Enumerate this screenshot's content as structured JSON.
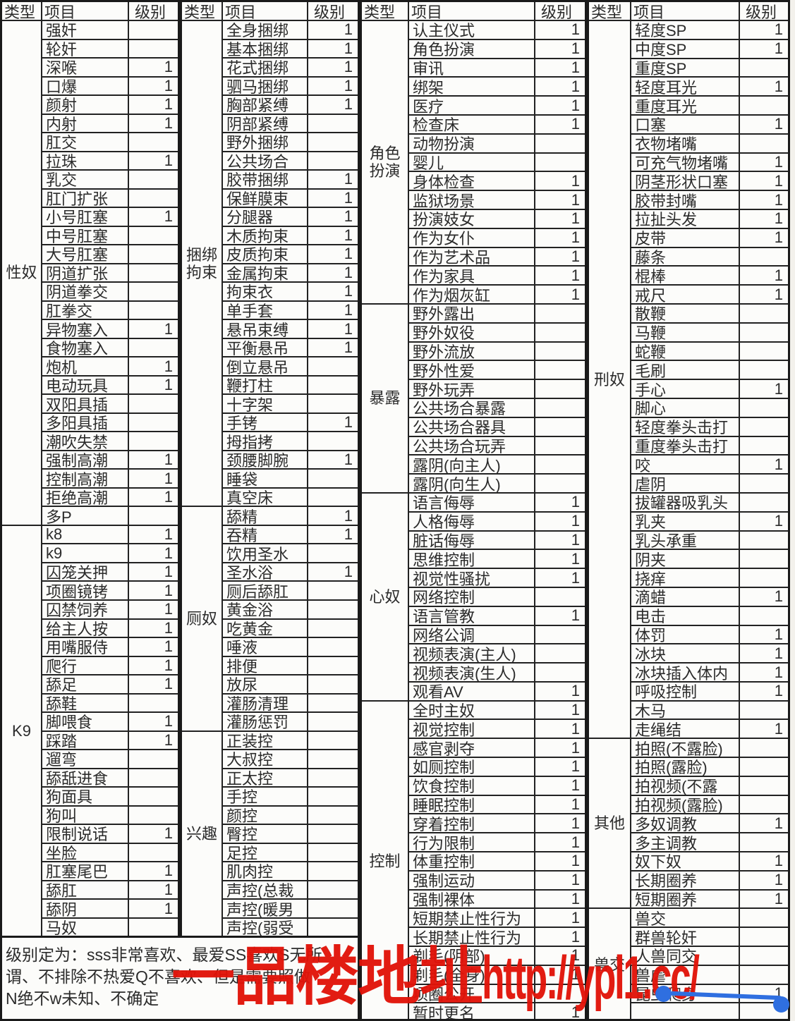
{
  "columns": {
    "type": "类型",
    "item": "项目",
    "level": "级别"
  },
  "groups": [
    {
      "sections": [
        {
          "label": "性奴",
          "items": [
            {
              "name": "强奸",
              "level": ""
            },
            {
              "name": "轮奸",
              "level": ""
            },
            {
              "name": "深喉",
              "level": "1"
            },
            {
              "name": "口爆",
              "level": "1"
            },
            {
              "name": "颜射",
              "level": "1"
            },
            {
              "name": "内射",
              "level": "1"
            },
            {
              "name": "肛交",
              "level": ""
            },
            {
              "name": "拉珠",
              "level": "1"
            },
            {
              "name": "乳交",
              "level": ""
            },
            {
              "name": "肛门扩张",
              "level": ""
            },
            {
              "name": "小号肛塞",
              "level": "1"
            },
            {
              "name": "中号肛塞",
              "level": ""
            },
            {
              "name": "大号肛塞",
              "level": ""
            },
            {
              "name": "阴道扩张",
              "level": ""
            },
            {
              "name": "阴道拳交",
              "level": ""
            },
            {
              "name": "肛拳交",
              "level": ""
            },
            {
              "name": "异物塞入",
              "level": "1"
            },
            {
              "name": "食物塞入",
              "level": ""
            },
            {
              "name": "炮机",
              "level": "1"
            },
            {
              "name": "电动玩具",
              "level": "1"
            },
            {
              "name": "双阳具插",
              "level": ""
            },
            {
              "name": "多阳具插",
              "level": ""
            },
            {
              "name": "潮吹失禁",
              "level": ""
            },
            {
              "name": "强制高潮",
              "level": "1"
            },
            {
              "name": "控制高潮",
              "level": "1"
            },
            {
              "name": "拒绝高潮",
              "level": "1"
            },
            {
              "name": "多P",
              "level": ""
            }
          ]
        },
        {
          "label": "K9",
          "items": [
            {
              "name": "k8",
              "level": "1"
            },
            {
              "name": "k9",
              "level": "1"
            },
            {
              "name": "囚笼关押",
              "level": "1"
            },
            {
              "name": "项圈镜铐",
              "level": "1"
            },
            {
              "name": "囚禁饲养",
              "level": "1"
            },
            {
              "name": "给主人按",
              "level": "1"
            },
            {
              "name": "用嘴服侍",
              "level": "1"
            },
            {
              "name": "爬行",
              "level": "1"
            },
            {
              "name": "舔足",
              "level": "1"
            },
            {
              "name": "舔鞋",
              "level": ""
            },
            {
              "name": "脚喂食",
              "level": "1"
            },
            {
              "name": "踩踏",
              "level": "1"
            },
            {
              "name": "遛弯",
              "level": ""
            },
            {
              "name": "舔舐进食",
              "level": ""
            },
            {
              "name": "狗面具",
              "level": ""
            },
            {
              "name": "狗叫",
              "level": ""
            },
            {
              "name": "限制说话",
              "level": "1"
            },
            {
              "name": "坐脸",
              "level": ""
            },
            {
              "name": "肛塞尾巴",
              "level": "1"
            },
            {
              "name": "舔肛",
              "level": "1"
            },
            {
              "name": "舔阴",
              "level": "1"
            },
            {
              "name": "马奴",
              "level": ""
            }
          ]
        }
      ]
    },
    {
      "sections": [
        {
          "label": "捆绑拘束",
          "items": [
            {
              "name": "全身捆绑",
              "level": "1"
            },
            {
              "name": "基本捆绑",
              "level": "1"
            },
            {
              "name": "花式捆绑",
              "level": "1"
            },
            {
              "name": "驷马捆绑",
              "level": "1"
            },
            {
              "name": "胸部紧缚",
              "level": "1"
            },
            {
              "name": "阴部紧缚",
              "level": ""
            },
            {
              "name": "野外捆绑",
              "level": ""
            },
            {
              "name": "公共场合",
              "level": ""
            },
            {
              "name": "胶带捆绑",
              "level": "1"
            },
            {
              "name": "保鲜膜束",
              "level": "1"
            },
            {
              "name": "分腿器",
              "level": "1"
            },
            {
              "name": "木质拘束",
              "level": "1"
            },
            {
              "name": "皮质拘束",
              "level": "1"
            },
            {
              "name": "金属拘束",
              "level": "1"
            },
            {
              "name": "拘束衣",
              "level": "1"
            },
            {
              "name": "单手套",
              "level": "1"
            },
            {
              "name": "悬吊束缚",
              "level": "1"
            },
            {
              "name": "平衡悬吊",
              "level": "1"
            },
            {
              "name": "倒立悬吊",
              "level": ""
            },
            {
              "name": "鞭打柱",
              "level": ""
            },
            {
              "name": "十字架",
              "level": ""
            },
            {
              "name": "手铐",
              "level": "1"
            },
            {
              "name": "拇指拷",
              "level": ""
            },
            {
              "name": "颈腰脚腕",
              "level": "1"
            },
            {
              "name": "睡袋",
              "level": ""
            },
            {
              "name": "真空床",
              "level": ""
            }
          ]
        },
        {
          "label": "厕奴",
          "items": [
            {
              "name": "舔精",
              "level": "1"
            },
            {
              "name": "吞精",
              "level": "1"
            },
            {
              "name": "饮用圣水",
              "level": ""
            },
            {
              "name": "圣水浴",
              "level": "1"
            },
            {
              "name": "厕后舔肛",
              "level": ""
            },
            {
              "name": "黄金浴",
              "level": ""
            },
            {
              "name": "吃黄金",
              "level": ""
            },
            {
              "name": "唾液",
              "level": ""
            },
            {
              "name": "排便",
              "level": ""
            },
            {
              "name": "放尿",
              "level": ""
            },
            {
              "name": "灌肠清理",
              "level": ""
            },
            {
              "name": "灌肠惩罚",
              "level": ""
            }
          ]
        },
        {
          "label": "兴趣",
          "items": [
            {
              "name": "正装控",
              "level": ""
            },
            {
              "name": "大叔控",
              "level": ""
            },
            {
              "name": "正太控",
              "level": ""
            },
            {
              "name": "手控",
              "level": ""
            },
            {
              "name": "颜控",
              "level": ""
            },
            {
              "name": "臀控",
              "level": ""
            },
            {
              "name": "足控",
              "level": ""
            },
            {
              "name": "肌肉控",
              "level": ""
            },
            {
              "name": "声控(总裁",
              "level": ""
            },
            {
              "name": "声控(暖男",
              "level": ""
            },
            {
              "name": "声控(弱受",
              "level": ""
            }
          ]
        }
      ]
    },
    {
      "sections": [
        {
          "label": "角色扮演",
          "items": [
            {
              "name": "认主仪式",
              "level": "1"
            },
            {
              "name": "角色扮演",
              "level": "1"
            },
            {
              "name": "审讯",
              "level": "1"
            },
            {
              "name": "绑架",
              "level": "1"
            },
            {
              "name": "医疗",
              "level": "1"
            },
            {
              "name": "检查床",
              "level": "1"
            },
            {
              "name": "动物扮演",
              "level": ""
            },
            {
              "name": "婴儿",
              "level": ""
            },
            {
              "name": "身体检查",
              "level": "1"
            },
            {
              "name": "监狱场景",
              "level": "1"
            },
            {
              "name": "扮演妓女",
              "level": "1"
            },
            {
              "name": "作为女仆",
              "level": "1"
            },
            {
              "name": "作为艺术品",
              "level": "1"
            },
            {
              "name": "作为家具",
              "level": "1"
            },
            {
              "name": "作为烟灰缸",
              "level": "1"
            }
          ]
        },
        {
          "label": "暴露",
          "items": [
            {
              "name": "野外露出",
              "level": ""
            },
            {
              "name": "野外奴役",
              "level": ""
            },
            {
              "name": "野外流放",
              "level": ""
            },
            {
              "name": "野外性爱",
              "level": ""
            },
            {
              "name": "野外玩弄",
              "level": ""
            },
            {
              "name": "公共场合暴露",
              "level": ""
            },
            {
              "name": "公共场合器具",
              "level": ""
            },
            {
              "name": "公共场合玩弄",
              "level": ""
            },
            {
              "name": "露阴(向主人)",
              "level": ""
            },
            {
              "name": "露阴(向生人)",
              "level": ""
            }
          ]
        },
        {
          "label": "心奴",
          "items": [
            {
              "name": "语言侮辱",
              "level": "1"
            },
            {
              "name": "人格侮辱",
              "level": "1"
            },
            {
              "name": "脏话侮辱",
              "level": "1"
            },
            {
              "name": "思维控制",
              "level": "1"
            },
            {
              "name": "视觉性骚扰",
              "level": "1"
            },
            {
              "name": "网络控制",
              "level": ""
            },
            {
              "name": "语言管教",
              "level": "1"
            },
            {
              "name": "网络公调",
              "level": ""
            },
            {
              "name": "视频表演(主人)",
              "level": ""
            },
            {
              "name": "视频表演(生人)",
              "level": ""
            },
            {
              "name": "观看AV",
              "level": "1"
            }
          ]
        },
        {
          "label": "控制",
          "items": [
            {
              "name": "全时主奴",
              "level": "1"
            },
            {
              "name": "视觉控制",
              "level": "1"
            },
            {
              "name": "感官剥夺",
              "level": "1"
            },
            {
              "name": "如厕控制",
              "level": "1"
            },
            {
              "name": "饮食控制",
              "level": "1"
            },
            {
              "name": "睡眠控制",
              "level": "1"
            },
            {
              "name": "穿着控制",
              "level": "1"
            },
            {
              "name": "行为限制",
              "level": "1"
            },
            {
              "name": "体重控制",
              "level": "1"
            },
            {
              "name": "强制运动",
              "level": "1"
            },
            {
              "name": "强制裸体",
              "level": "1"
            },
            {
              "name": "短期禁止性行为",
              "level": "1"
            },
            {
              "name": "长期禁止性行为",
              "level": "1"
            },
            {
              "name": "剃毛(阴部)",
              "level": "1"
            },
            {
              "name": "剃毛(全身)",
              "level": "1"
            },
            {
              "name": "项圈公开",
              "level": ""
            },
            {
              "name": "暂时更名",
              "level": "1"
            }
          ]
        }
      ]
    },
    {
      "sections": [
        {
          "label": "刑奴",
          "items": [
            {
              "name": "轻度SP",
              "level": "1"
            },
            {
              "name": "中度SP",
              "level": "1"
            },
            {
              "name": "重度SP",
              "level": ""
            },
            {
              "name": "轻度耳光",
              "level": "1"
            },
            {
              "name": "重度耳光",
              "level": ""
            },
            {
              "name": "口塞",
              "level": "1"
            },
            {
              "name": "衣物堵嘴",
              "level": ""
            },
            {
              "name": "可充气物堵嘴",
              "level": "1"
            },
            {
              "name": "阴茎形状口塞",
              "level": "1"
            },
            {
              "name": "胶带封嘴",
              "level": "1"
            },
            {
              "name": "拉扯头发",
              "level": "1"
            },
            {
              "name": "皮带",
              "level": "1"
            },
            {
              "name": "藤条",
              "level": ""
            },
            {
              "name": "棍棒",
              "level": "1"
            },
            {
              "name": "戒尺",
              "level": "1"
            },
            {
              "name": "散鞭",
              "level": ""
            },
            {
              "name": "马鞭",
              "level": ""
            },
            {
              "name": "蛇鞭",
              "level": ""
            },
            {
              "name": "毛刷",
              "level": ""
            },
            {
              "name": "手心",
              "level": "1"
            },
            {
              "name": "脚心",
              "level": ""
            },
            {
              "name": "轻度拳头击打",
              "level": ""
            },
            {
              "name": "重度拳头击打",
              "level": ""
            },
            {
              "name": "咬",
              "level": "1"
            },
            {
              "name": "虐阴",
              "level": ""
            },
            {
              "name": "拔罐器吸乳头",
              "level": ""
            },
            {
              "name": "乳夹",
              "level": "1"
            },
            {
              "name": "乳头承重",
              "level": ""
            },
            {
              "name": "阴夹",
              "level": ""
            },
            {
              "name": "挠痒",
              "level": ""
            },
            {
              "name": "滴蜡",
              "level": "1"
            },
            {
              "name": "电击",
              "level": ""
            },
            {
              "name": "体罚",
              "level": "1"
            },
            {
              "name": "冰块",
              "level": "1"
            },
            {
              "name": "冰块插入体内",
              "level": "1"
            },
            {
              "name": "呼吸控制",
              "level": "1"
            },
            {
              "name": "木马",
              "level": ""
            },
            {
              "name": "走绳结",
              "level": "1"
            }
          ]
        },
        {
          "label": "其他",
          "items": [
            {
              "name": "拍照(不露脸)",
              "level": ""
            },
            {
              "name": "拍照(露脸)",
              "level": ""
            },
            {
              "name": "拍视频(不露",
              "level": ""
            },
            {
              "name": "拍视频(露脸)",
              "level": ""
            },
            {
              "name": "多奴调教",
              "level": "1"
            },
            {
              "name": "多主调教",
              "level": ""
            },
            {
              "name": "奴下奴",
              "level": "1"
            },
            {
              "name": "长期圈养",
              "level": "1"
            },
            {
              "name": "短期圈养",
              "level": "1"
            }
          ]
        },
        {
          "label": "兽交",
          "items": [
            {
              "name": "兽交",
              "level": ""
            },
            {
              "name": "群兽轮奸",
              "level": ""
            },
            {
              "name": "人兽同交",
              "level": ""
            },
            {
              "name": "兽虐",
              "level": ""
            },
            {
              "name": "昆虫爬身",
              "level": "1"
            }
          ]
        }
      ]
    }
  ],
  "legend": {
    "lines": [
      "级别定为：sss非常喜欢、最爱SS喜欢S无所",
      "谓、不排除不热爱Q不喜欢、但是需要照做",
      "N绝不w未知、不确定"
    ]
  },
  "watermark": {
    "prefix": "一品楼地址",
    "url": "http://ypl1.cc/",
    "color": "#e11309"
  },
  "selection": {
    "color": "#2f6fe0"
  }
}
